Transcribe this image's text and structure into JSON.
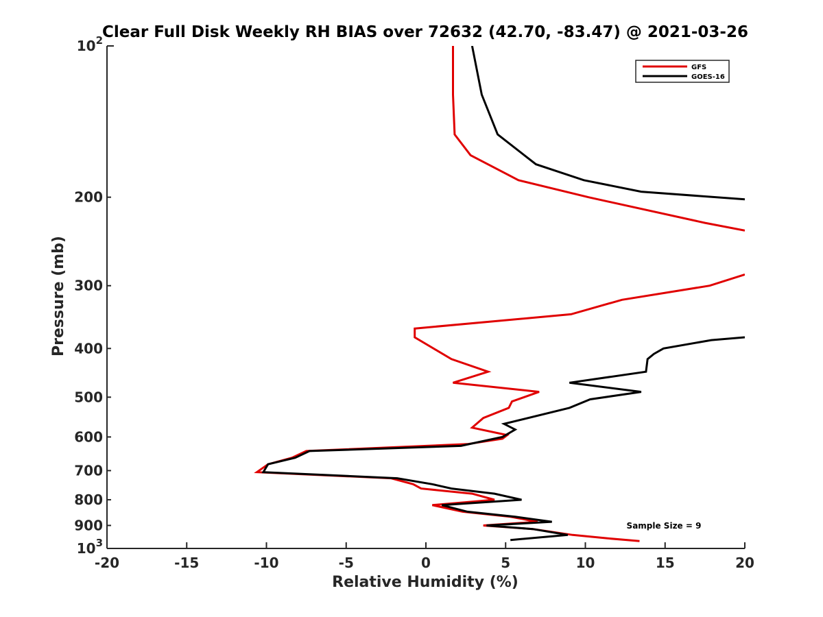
{
  "chart_data": {
    "type": "line",
    "title": "Clear Full Disk Weekly RH BIAS over 72632 (42.70, -83.47) @ 2021-03-26",
    "xlabel": "Relative Humidity (%)",
    "ylabel": "Pressure (mb)",
    "xlim": [
      -20,
      20
    ],
    "ylim": [
      100,
      1000
    ],
    "y_scale": "log",
    "y_reversed": true,
    "grid": false,
    "legend_position": "top-right",
    "x_ticks": [
      "-20",
      "-15",
      "-10",
      "-5",
      "0",
      "5",
      "10",
      "15",
      "20"
    ],
    "y_ticks": [
      {
        "value": 100,
        "base": "10",
        "exp": "2"
      },
      {
        "value": 200,
        "label": "200"
      },
      {
        "value": 300,
        "label": "300"
      },
      {
        "value": 400,
        "label": "400"
      },
      {
        "value": 500,
        "label": "500"
      },
      {
        "value": 600,
        "label": "600"
      },
      {
        "value": 700,
        "label": "700"
      },
      {
        "value": 800,
        "label": "800"
      },
      {
        "value": 900,
        "label": "900"
      },
      {
        "value": 1000,
        "base": "10",
        "exp": "3"
      }
    ],
    "series": [
      {
        "name": "GFS",
        "color": "#e00000",
        "segments": [
          [
            [
              1.7,
              100
            ],
            [
              1.7,
              125
            ],
            [
              1.8,
              150
            ],
            [
              2.8,
              165
            ],
            [
              5.8,
              185
            ],
            [
              10.2,
              200
            ],
            [
              17.5,
              225
            ],
            [
              20,
              233
            ]
          ],
          [
            [
              20,
              285
            ],
            [
              17.8,
              300
            ],
            [
              12.3,
              320
            ],
            [
              9.1,
              342
            ],
            [
              -0.7,
              365
            ],
            [
              -0.7,
              380
            ],
            [
              1.6,
              420
            ],
            [
              3.9,
              445
            ],
            [
              1.7,
              468
            ],
            [
              7.1,
              488
            ],
            [
              5.4,
              510
            ],
            [
              5.2,
              525
            ],
            [
              3.6,
              550
            ],
            [
              2.9,
              575
            ],
            [
              5.1,
              595
            ],
            [
              4.8,
              605
            ],
            [
              2.6,
              620
            ],
            [
              -7.5,
              640
            ],
            [
              -8.4,
              660
            ],
            [
              -9.9,
              680
            ],
            [
              -10.6,
              705
            ],
            [
              -2.2,
              725
            ],
            [
              -0.8,
              745
            ],
            [
              -0.3,
              760
            ],
            [
              2.9,
              778
            ],
            [
              4.3,
              800
            ],
            [
              0.4,
              820
            ],
            [
              2.3,
              845
            ],
            [
              5.3,
              865
            ],
            [
              7,
              885
            ],
            [
              3.6,
              900
            ],
            [
              6.7,
              915
            ],
            [
              9.2,
              940
            ],
            [
              11.4,
              955
            ],
            [
              13.4,
              967
            ]
          ]
        ]
      },
      {
        "name": "GOES-16",
        "color": "#000000",
        "segments": [
          [
            [
              2.9,
              100
            ],
            [
              3.5,
              125
            ],
            [
              4.5,
              150
            ],
            [
              6.9,
              172
            ],
            [
              9.9,
              185
            ],
            [
              13.5,
              195
            ],
            [
              20,
              202
            ]
          ],
          [
            [
              20,
              380
            ],
            [
              17.9,
              385
            ],
            [
              14.9,
              400
            ],
            [
              14.3,
              410
            ],
            [
              13.9,
              420
            ],
            [
              13.8,
              445
            ],
            [
              9,
              468
            ],
            [
              13.5,
              488
            ],
            [
              10.3,
              505
            ],
            [
              9,
              525
            ],
            [
              4.9,
              565
            ],
            [
              5.6,
              580
            ],
            [
              4.8,
              600
            ],
            [
              2.2,
              625
            ],
            [
              -7.3,
              640
            ],
            [
              -8.2,
              660
            ],
            [
              -9.9,
              680
            ],
            [
              -10.2,
              705
            ],
            [
              -1.8,
              725
            ],
            [
              0.4,
              745
            ],
            [
              1.6,
              760
            ],
            [
              4.3,
              778
            ],
            [
              6,
              800
            ],
            [
              1,
              820
            ],
            [
              2.6,
              845
            ],
            [
              5.6,
              865
            ],
            [
              7.9,
              885
            ],
            [
              3.8,
              900
            ],
            [
              6.7,
              915
            ],
            [
              8.9,
              940
            ],
            [
              5.3,
              962
            ]
          ]
        ]
      }
    ],
    "annotation": "Sample Size = 9"
  }
}
